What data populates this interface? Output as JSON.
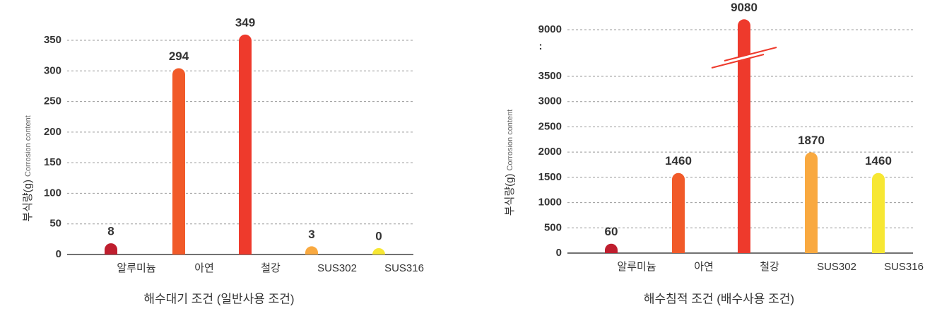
{
  "chart_data": [
    {
      "type": "bar",
      "title": "해수대기 조건 (일반사용 조건)",
      "ylabel": "부식량(g)",
      "ylabel_sub": "Corrosion content",
      "categories": [
        "알루미늄",
        "아연",
        "철강",
        "SUS302",
        "SUS316"
      ],
      "values": [
        8,
        294,
        349,
        3,
        0
      ],
      "colors": [
        "#bf1e2e",
        "#f15a29",
        "#ee3a2c",
        "#f9a940",
        "#f7e733"
      ],
      "category_colors": [
        "#c0272d",
        "#333333",
        "#333333",
        "#333333",
        "#333333"
      ],
      "ylim": [
        0,
        350
      ],
      "yticks": [
        0,
        50,
        100,
        150,
        200,
        250,
        300,
        350
      ],
      "grid": true
    },
    {
      "type": "bar",
      "title": "해수침적 조건 (배수사용 조건)",
      "ylabel": "부식량(g)",
      "ylabel_sub": "Corrosion content",
      "categories": [
        "알루미늄",
        "아연",
        "철강",
        "SUS302",
        "SUS316"
      ],
      "values": [
        60,
        1460,
        9080,
        1870,
        1460
      ],
      "colors": [
        "#bf1e2e",
        "#f15a29",
        "#ee3a2c",
        "#f9a940",
        "#f7e733"
      ],
      "category_colors": [
        "#c0272d",
        "#333333",
        "#333333",
        "#333333",
        "#333333"
      ],
      "ylim": [
        0,
        9000
      ],
      "axis_break": [
        3500,
        9000
      ],
      "break_label": ":",
      "yticks": [
        0,
        500,
        1000,
        1500,
        2000,
        2500,
        3000,
        3500,
        9000
      ],
      "grid": true
    }
  ]
}
